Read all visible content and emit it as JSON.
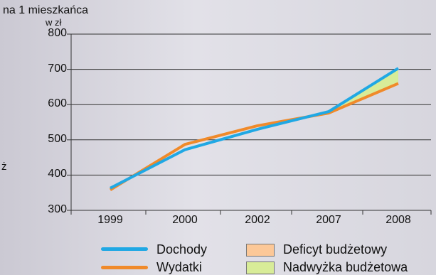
{
  "unit_line1": "na 1 mieszkańca",
  "unit_line2": "w zł",
  "side_char": "ż",
  "chart_data": {
    "type": "line",
    "categories": [
      "1999",
      "2000",
      "2002",
      "2007",
      "2008"
    ],
    "ylim": [
      300,
      800
    ],
    "yticks": [
      "300",
      "400",
      "500",
      "600",
      "700",
      "800"
    ],
    "series": [
      {
        "name": "Dochody",
        "color": "#20a8e4",
        "values": [
          363,
          472,
          530,
          580,
          703
        ]
      },
      {
        "name": "Wydatki",
        "color": "#f08a2a",
        "values": [
          358,
          487,
          540,
          576,
          660
        ]
      }
    ],
    "areas": [
      {
        "name": "Deficyt budżetowy",
        "color": "#fcc898"
      },
      {
        "name": "Nadwyżka budżetowa",
        "color": "#d8ec98"
      }
    ]
  }
}
